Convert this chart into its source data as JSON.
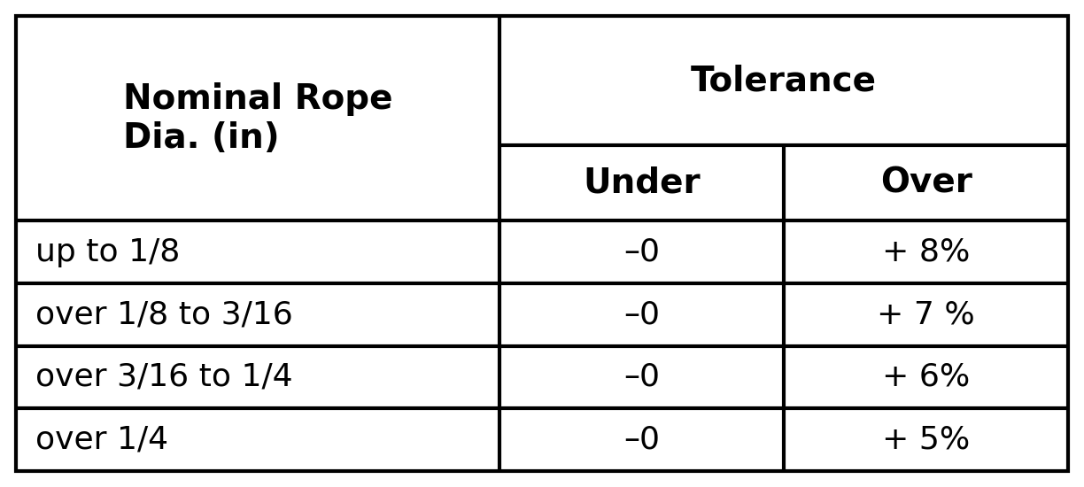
{
  "header_col1": "Nominal Rope\nDia. (in)",
  "header_tolerance": "Tolerance",
  "header_under": "Under",
  "header_over": "Over",
  "rows": [
    [
      "up to 1/8",
      "–0",
      "+ 8%"
    ],
    [
      "over 1/8 to 3/16",
      "–0",
      "+ 7 %"
    ],
    [
      "over 3/16 to 1/4",
      "–0",
      "+ 6%"
    ],
    [
      "over 1/4",
      "–0",
      "+ 5%"
    ]
  ],
  "bg_color": "#ffffff",
  "border_color": "#000000",
  "text_color": "#000000",
  "header_fontsize": 28,
  "body_fontsize": 26,
  "figwidth": 12.24,
  "figheight": 5.5,
  "dpi": 100
}
